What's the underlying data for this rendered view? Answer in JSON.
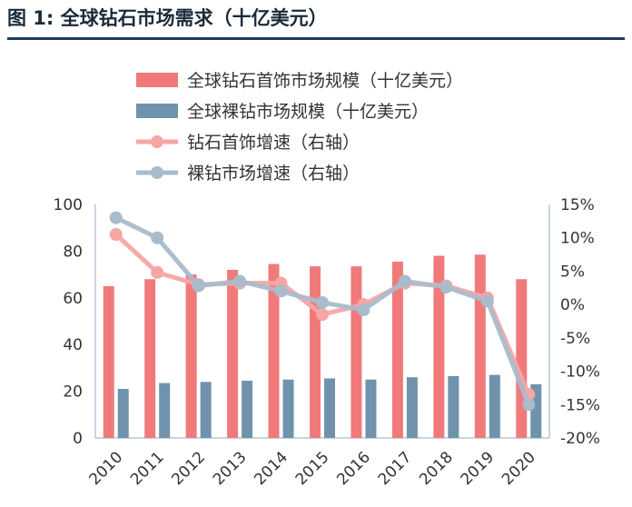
{
  "figure_title": "图 1: 全球钻石市场需求（十亿美元）",
  "colors": {
    "jewelry_bar": "#f07a7a",
    "polished_bar": "#6f93ad",
    "jewelry_line": "#f7a5a5",
    "polished_line": "#a9bccb",
    "axis": "#b9c7d3",
    "title_rule": "#1f3a5f"
  },
  "chart_data": {
    "type": "bar",
    "title": "",
    "categories": [
      "2010",
      "2011",
      "2012",
      "2013",
      "2014",
      "2015",
      "2016",
      "2017",
      "2018",
      "2019",
      "2020"
    ],
    "series": [
      {
        "name": "全球钻石首饰市场规模（十亿美元）",
        "type": "bar",
        "axis": "left",
        "values": [
          65,
          68,
          70,
          72,
          74.5,
          73.5,
          73.5,
          75.5,
          78,
          78.5,
          68
        ]
      },
      {
        "name": "全球裸钻市场规模（十亿美元）",
        "type": "bar",
        "axis": "left",
        "values": [
          21,
          23.5,
          24,
          24.5,
          25,
          25.5,
          25,
          26,
          26.5,
          27,
          23
        ]
      },
      {
        "name": "钻石首饰增速（右轴）",
        "type": "line",
        "axis": "right",
        "values": [
          10.5,
          4.8,
          3,
          3.2,
          3.2,
          -1.5,
          0,
          3.2,
          2.8,
          1,
          -13.5
        ]
      },
      {
        "name": "裸钻市场增速（右轴）",
        "type": "line",
        "axis": "right",
        "values": [
          13,
          10,
          2.8,
          3.5,
          2,
          0.3,
          -0.8,
          3.5,
          2.6,
          0.5,
          -15
        ]
      }
    ],
    "ylim_left": [
      0,
      100
    ],
    "yticks_left": [
      "0",
      "20",
      "40",
      "60",
      "80",
      "100"
    ],
    "ylim_right": [
      -20,
      15
    ],
    "yticks_right": [
      "-20%",
      "-15%",
      "-10%",
      "-5%",
      "0%",
      "5%",
      "10%",
      "15%"
    ],
    "grid": false,
    "legend_position": "top-left"
  }
}
